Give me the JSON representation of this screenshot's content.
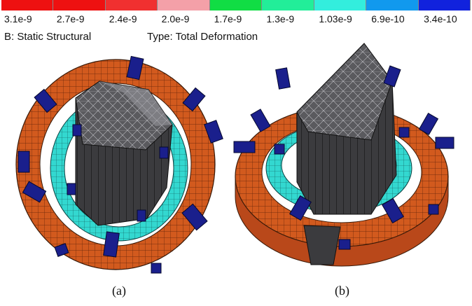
{
  "legend": {
    "labels": [
      "3.1e-9",
      "2.7e-9",
      "2.4e-9",
      "2.0e-9",
      "1.7e-9",
      "1.3e-9",
      "1.03e-9",
      "6.9e-10",
      "3.4e-10"
    ],
    "colors": [
      "#ee1111",
      "#ee1111",
      "#f03030",
      "#f4a0a8",
      "#11dd44",
      "#22ee99",
      "#33eedd",
      "#1199ee",
      "#1122dd"
    ]
  },
  "header": {
    "analysis": "B: Static Structural",
    "type": "Type: Total Deformation"
  },
  "captions": {
    "a": "(a)",
    "b": "(b)"
  },
  "model_colors": {
    "outer_ring": "#d25a1e",
    "inner_ring": "#33d8d0",
    "core": "#5a5a5e",
    "clamp": "#1a1f8c",
    "mesh_line": "#3a1a08"
  }
}
